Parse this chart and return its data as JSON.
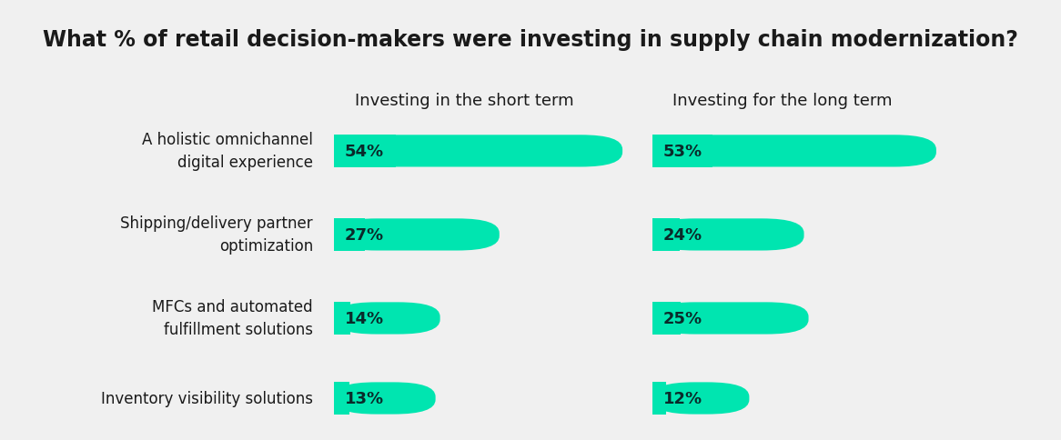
{
  "title": "What % of retail decision-makers were investing in supply chain modernization?",
  "col1_header": "Investing in the short term",
  "col2_header": "Investing for the long term",
  "categories": [
    "A holistic omnichannel\ndigital experience",
    "Shipping/delivery partner\noptimization",
    "MFCs and automated\nfulfillment solutions",
    "Inventory visibility solutions"
  ],
  "short_term": [
    54,
    27,
    14,
    13
  ],
  "long_term": [
    53,
    24,
    25,
    12
  ],
  "bar_color": "#00E5B0",
  "text_color": "#1a1a1a",
  "label_color": "#0a2a2a",
  "background_color": "#f0f0f0",
  "title_background": "#ffffff",
  "max_value": 60,
  "title_fontsize": 17,
  "header_fontsize": 13,
  "label_fontsize": 12,
  "value_fontsize": 13
}
